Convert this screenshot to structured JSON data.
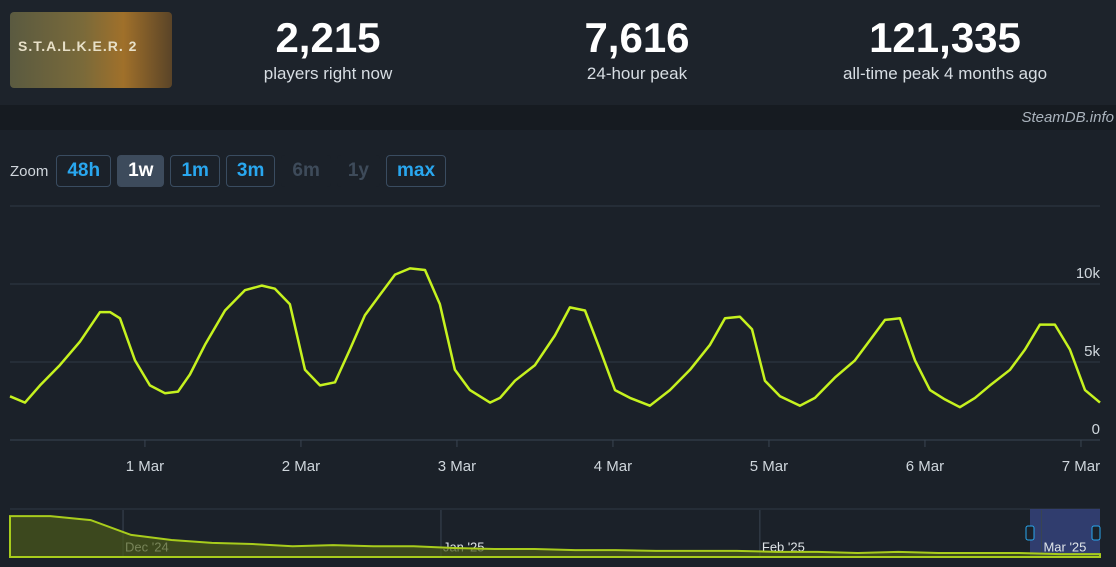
{
  "header": {
    "game_logo": "S.T.A.L.K.E.R. 2",
    "stats": [
      {
        "value": "2,215",
        "label": "players right now"
      },
      {
        "value": "7,616",
        "label": "24-hour peak"
      },
      {
        "value": "121,335",
        "label": "all-time peak 4 months ago"
      }
    ]
  },
  "watermark": "SteamDB.info",
  "zoom": {
    "label": "Zoom",
    "buttons": [
      "48h",
      "1w",
      "1m",
      "3m",
      "6m",
      "1y",
      "max"
    ],
    "active_index": 1,
    "disabled_indices": [
      4,
      5
    ]
  },
  "chart_data": [
    {
      "type": "line",
      "color": "#c6f21f",
      "x": [
        0.135,
        0.231,
        0.327,
        0.455,
        0.583,
        0.712,
        0.776,
        0.84,
        0.936,
        1.032,
        1.128,
        1.212,
        1.288,
        1.385,
        1.513,
        1.641,
        1.75,
        1.833,
        1.929,
        2.026,
        2.122,
        2.218,
        2.314,
        2.41,
        2.506,
        2.603,
        2.699,
        2.795,
        2.891,
        2.987,
        3.083,
        3.212,
        3.276,
        3.372,
        3.5,
        3.628,
        3.724,
        3.821,
        3.917,
        4.013,
        4.109,
        4.237,
        4.365,
        4.494,
        4.622,
        4.718,
        4.814,
        4.891,
        4.974,
        5.071,
        5.199,
        5.295,
        5.423,
        5.551,
        5.647,
        5.744,
        5.84,
        5.936,
        6.032,
        6.128,
        6.224,
        6.321,
        6.417,
        6.545,
        6.641,
        6.737,
        6.833,
        6.929,
        7.026,
        7.122
      ],
      "values": [
        2800,
        2400,
        3500,
        4800,
        6300,
        8200,
        8200,
        7800,
        5100,
        3500,
        3000,
        3100,
        4200,
        6100,
        8300,
        9600,
        9900,
        9700,
        8700,
        4500,
        3500,
        3700,
        5800,
        8000,
        9300,
        10600,
        11000,
        10900,
        8700,
        4500,
        3200,
        2400,
        2700,
        3800,
        4800,
        6700,
        8500,
        8300,
        5800,
        3200,
        2700,
        2200,
        3200,
        4500,
        6100,
        7800,
        7900,
        7100,
        3800,
        2800,
        2200,
        2700,
        4000,
        5100,
        6400,
        7700,
        7800,
        5100,
        3200,
        2600,
        2100,
        2700,
        3500,
        4500,
        5800,
        7400,
        7400,
        5800,
        3200,
        2400
      ],
      "xlim": [
        0.135,
        7.122
      ],
      "xticks": [
        {
          "value": 1,
          "label": "1 Mar"
        },
        {
          "value": 2,
          "label": "2 Mar"
        },
        {
          "value": 3,
          "label": "3 Mar"
        },
        {
          "value": 4,
          "label": "4 Mar"
        },
        {
          "value": 5,
          "label": "5 Mar"
        },
        {
          "value": 6,
          "label": "6 Mar"
        },
        {
          "value": 7,
          "label": "7 Mar"
        }
      ],
      "ylim": [
        0,
        15000
      ],
      "yticks": [
        {
          "value": 0,
          "label": "0"
        },
        {
          "value": 5000,
          "label": "5k"
        },
        {
          "value": 10000,
          "label": "10k"
        }
      ],
      "grid": true
    },
    {
      "type": "area",
      "color": "#a8cc1c",
      "values": [
        113000,
        113000,
        102000,
        61000,
        47000,
        39000,
        36000,
        30000,
        33000,
        30000,
        30000,
        25000,
        22000,
        22000,
        19000,
        19000,
        17000,
        17000,
        17000,
        14000,
        14000,
        11000,
        14000,
        11000,
        11000,
        11000,
        8000,
        8000
      ],
      "xlim": [
        0,
        27
      ],
      "ylim": [
        0,
        130000
      ],
      "xticks": [
        {
          "value": 2.8,
          "label": "Dec '24"
        },
        {
          "value": 10.675,
          "label": "Jan '25"
        },
        {
          "value": 18.575,
          "label": "Feb '25"
        },
        {
          "value": 25.55,
          "label": "Mar '25"
        }
      ]
    }
  ]
}
